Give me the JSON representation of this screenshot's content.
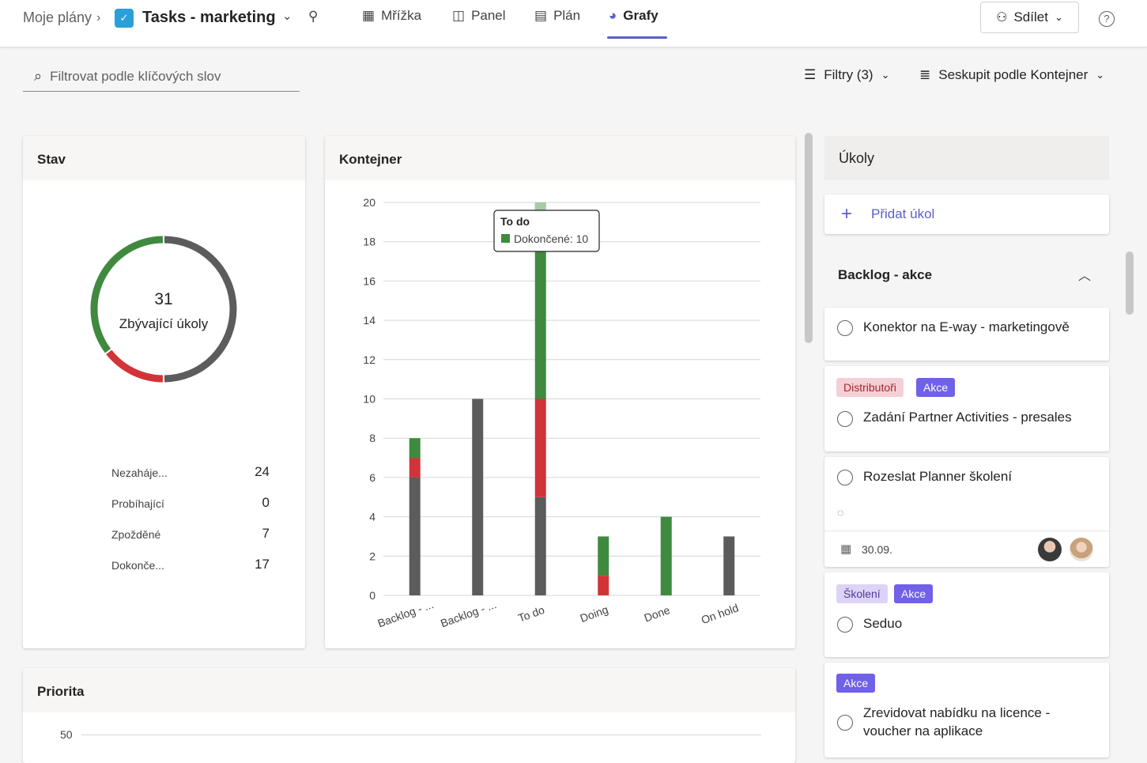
{
  "nav": {
    "breadcrumb": "Moje plány",
    "plan_icon": "planner-icon",
    "plan_title": "Tasks - marketing",
    "tabs": [
      {
        "label": "Mřížka",
        "icon": "grid-icon"
      },
      {
        "label": "Panel",
        "icon": "board-icon"
      },
      {
        "label": "Plán",
        "icon": "calendar-icon"
      },
      {
        "label": "Grafy",
        "icon": "charts-icon",
        "active": true
      }
    ],
    "share_label": "Sdílet",
    "help": "?"
  },
  "toolbar": {
    "search_placeholder": "Filtrovat podle klíčových slov",
    "filters_label": "Filtry (3)",
    "group_label": "Seskupit podle Kontejner"
  },
  "status_card": {
    "title": "Stav",
    "center_value": "31",
    "center_label": "Zbývající úkoly",
    "donut": [
      {
        "name": "Nezahájené",
        "value": 24,
        "color": "#5c5c5c"
      },
      {
        "name": "Probíhající",
        "value": 0,
        "color": "#5b8def"
      },
      {
        "name": "Zpožděné",
        "value": 7,
        "color": "#d13438"
      },
      {
        "name": "Dokončené",
        "value": 17,
        "color": "#3f8a3f"
      }
    ],
    "legend": [
      {
        "label": "Nezahájе...",
        "value": "24"
      },
      {
        "label": "Probíhající",
        "value": "0"
      },
      {
        "label": "Zpožděné",
        "value": "7"
      },
      {
        "label": "Dokonče...",
        "value": "17"
      }
    ]
  },
  "chart_data": {
    "type": "bar",
    "title": "Kontejner",
    "stacked": true,
    "categories": [
      "Backlog - ...",
      "Backlog - ...",
      "To do",
      "Doing",
      "Done",
      "On hold"
    ],
    "series": [
      {
        "name": "Nezahájené",
        "color": "#5c5c5c",
        "values": [
          6,
          10,
          5,
          0,
          0,
          3
        ]
      },
      {
        "name": "Zpožděné",
        "color": "#d13438",
        "values": [
          1,
          0,
          5,
          1,
          0,
          0
        ]
      },
      {
        "name": "Dokončené",
        "color": "#3f8a3f",
        "values": [
          1,
          0,
          10,
          2,
          4,
          0
        ]
      }
    ],
    "ylim": [
      0,
      20
    ],
    "yticks": [
      0,
      2,
      4,
      6,
      8,
      10,
      12,
      14,
      16,
      18,
      20
    ],
    "grid": true,
    "tooltip": {
      "title": "To do",
      "series": "Dokončené",
      "value": "10",
      "text": "Dokončené: 10"
    }
  },
  "priority_card": {
    "title": "Priorita",
    "first_tick": "50"
  },
  "tasks": {
    "title": "Úkoly",
    "add_label": "Přidat úkol",
    "group_title": "Backlog - akce",
    "items": [
      {
        "title": "Konektor na E-way - marketingově"
      },
      {
        "title": "Zadání Partner Activities - presales",
        "tags": [
          "Distributoři",
          "Akce"
        ]
      },
      {
        "title": "Rozeslat Planner školení",
        "date": "30.09."
      },
      {
        "title": "Seduo",
        "tags": [
          "Školení",
          "Akce"
        ]
      },
      {
        "title": "Zrevidovat nabídku na licence - voucher na aplikace",
        "tags": [
          "Akce"
        ]
      }
    ]
  }
}
